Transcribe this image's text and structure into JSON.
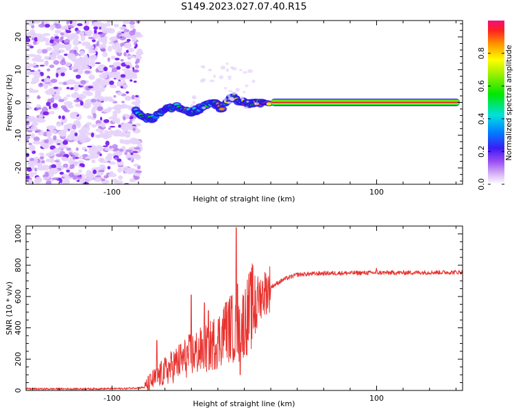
{
  "title": "S149.2023.027.07.40.R15",
  "colors": {
    "snr_line": "#e8322e",
    "ridge_core": "#e8322e",
    "noise_light": "#e6d3fb",
    "noise_mid": "#b57cf2",
    "noise_dark": "#7a1ff0"
  },
  "chart_data": [
    {
      "type": "heatmap",
      "name": "spectrogram",
      "xlabel": "Height of straight line (km)",
      "ylabel": "Frequency (Hz)",
      "xlim": [
        -165,
        165
      ],
      "ylim": [
        -25,
        25
      ],
      "xticks": [
        -100,
        100
      ],
      "yticks": [
        -20,
        -10,
        0,
        10,
        20
      ],
      "colorbar": {
        "label": "Normalized spectral amplitude",
        "range": [
          0,
          1
        ],
        "ticks": [
          "0.0",
          "0.2",
          "0.4",
          "0.6",
          "0.8"
        ]
      },
      "noise_region_x": [
        -165,
        -82
      ],
      "ridge": {
        "x": [
          -82,
          -76,
          -70,
          -64,
          -58,
          -52,
          -46,
          -40,
          -34,
          -28,
          -22,
          -18,
          -12,
          -8,
          -4,
          0,
          4,
          8,
          12,
          20
        ],
        "y": [
          -2.5,
          -4.5,
          -5,
          -3.5,
          -2,
          -1,
          -2,
          -3,
          -2,
          -0.5,
          0,
          -2,
          1,
          1.5,
          0.5,
          0,
          -0.5,
          0,
          0,
          0
        ]
      },
      "line": {
        "x": [
          20,
          163
        ],
        "y": 0
      }
    },
    {
      "type": "line",
      "name": "snr",
      "xlabel": "Height of straight line (km)",
      "ylabel": "SNR (10 * v/v)",
      "xlim": [
        -165,
        165
      ],
      "ylim": [
        0,
        1050
      ],
      "xticks": [
        -100,
        100
      ],
      "yticks": [
        0,
        200,
        400,
        600,
        800,
        1000
      ],
      "trend_x": [
        -165,
        -120,
        -90,
        -75,
        -70,
        -60,
        -50,
        -40,
        -30,
        -20,
        -15,
        -10,
        -5,
        0,
        10,
        20,
        30,
        40,
        60,
        80,
        100,
        120,
        140,
        165
      ],
      "trend_y": [
        10,
        10,
        12,
        20,
        60,
        120,
        180,
        230,
        260,
        320,
        370,
        410,
        340,
        450,
        590,
        660,
        710,
        740,
        748,
        750,
        752,
        752,
        754,
        755
      ],
      "spikes": [
        {
          "x": -66,
          "y": 320
        },
        {
          "x": -40,
          "y": 610
        },
        {
          "x": -30,
          "y": 560
        },
        {
          "x": -27,
          "y": 510
        },
        {
          "x": -14,
          "y": 560
        },
        {
          "x": -6,
          "y": 1040
        },
        {
          "x": -5,
          "y": 680
        },
        {
          "x": -3,
          "y": 100
        },
        {
          "x": 0,
          "y": 230
        },
        {
          "x": 10,
          "y": 660
        },
        {
          "x": 100,
          "y": 780
        }
      ]
    }
  ]
}
